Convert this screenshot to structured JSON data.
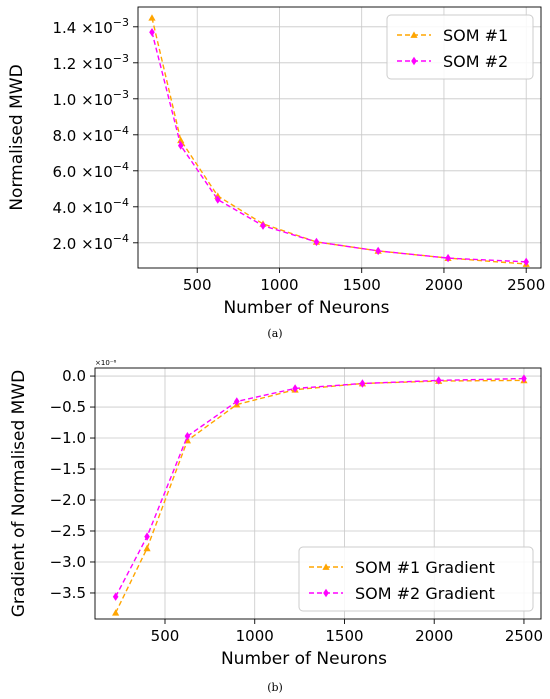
{
  "chart_data": [
    {
      "id": "a",
      "type": "line",
      "caption": "(a)",
      "xlabel": "Number of Neurons",
      "ylabel": "Normalised MWD",
      "x": [
        225,
        400,
        625,
        900,
        1225,
        1600,
        2025,
        2500
      ],
      "xlim": [
        140,
        2590
      ],
      "ylim": [
        6e-05,
        0.00151
      ],
      "xticks": [
        500,
        1000,
        1500,
        2000,
        2500
      ],
      "xtick_labels": [
        "500",
        "1000",
        "1500",
        "2000",
        "2500"
      ],
      "yticks": [
        0.0002,
        0.0004,
        0.0006,
        0.0008,
        0.001,
        0.0012,
        0.0014
      ],
      "ytick_mantissa": [
        "2.0",
        "4.0",
        "6.0",
        "8.0",
        "1.0",
        "1.2",
        "1.4"
      ],
      "ytick_exponent": [
        "−4",
        "−4",
        "−4",
        "−4",
        "−3",
        "−3",
        "−3"
      ],
      "ytick_times": "×10",
      "grid": true,
      "legend_position": "top-right",
      "series": [
        {
          "name": "SOM #1",
          "color": "#FFA500",
          "marker": "triangle",
          "values": [
            0.00145,
            0.00077,
            0.00046,
            0.000305,
            0.000205,
            0.000155,
            0.000115,
            8.2e-05
          ]
        },
        {
          "name": "SOM #2",
          "color": "#FF00FF",
          "marker": "diamond",
          "values": [
            0.00137,
            0.00074,
            0.00044,
            0.000295,
            0.000205,
            0.000155,
            0.000115,
            9.4e-05
          ]
        }
      ]
    },
    {
      "id": "b",
      "type": "line",
      "caption": "(b)",
      "xlabel": "Number of Neurons",
      "ylabel": "Gradient of Normalised MWD",
      "offset_text": "×10⁻⁶",
      "x": [
        225,
        400,
        625,
        900,
        1225,
        1600,
        2025,
        2500
      ],
      "xlim": [
        110,
        2595
      ],
      "ylim": [
        -3.92,
        0.13
      ],
      "xticks": [
        500,
        1000,
        1500,
        2000,
        2500
      ],
      "xtick_labels": [
        "500",
        "1000",
        "1500",
        "2000",
        "2500"
      ],
      "yticks": [
        0.0,
        -0.5,
        -1.0,
        -1.5,
        -2.0,
        -2.5,
        -3.0,
        -3.5
      ],
      "ytick_labels": [
        "0.0",
        "−0.5",
        "−1.0",
        "−1.5",
        "−2.0",
        "−2.5",
        "−3.0",
        "−3.5"
      ],
      "grid": true,
      "legend_position": "bottom-right",
      "series": [
        {
          "name": "SOM #1 Gradient",
          "color": "#FFA500",
          "marker": "triangle",
          "values": [
            -3.82,
            -2.78,
            -1.04,
            -0.46,
            -0.22,
            -0.12,
            -0.08,
            -0.07
          ]
        },
        {
          "name": "SOM #2 Gradient",
          "color": "#FF00FF",
          "marker": "diamond",
          "values": [
            -3.56,
            -2.59,
            -0.97,
            -0.41,
            -0.2,
            -0.12,
            -0.07,
            -0.04
          ]
        }
      ]
    }
  ]
}
